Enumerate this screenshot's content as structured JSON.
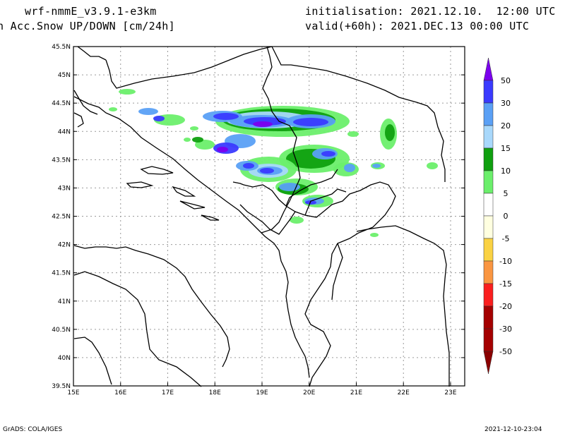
{
  "header": {
    "model": "wrf-nmmE_v3.9.1-e3km",
    "field": "h Acc.Snow UP/DOWN [cm/24h]",
    "init": "initialisation: 2021.12.10.  12:00 UTC",
    "valid": "valid(+60h): 2021.DEC.13 00:00 UTC"
  },
  "map": {
    "lat_labels": [
      "45.5N",
      "45N",
      "44.5N",
      "44N",
      "43.5N",
      "43N",
      "42.5N",
      "42N",
      "41.5N",
      "41N",
      "40.5N",
      "40N",
      "39.5N"
    ],
    "lon_labels": [
      "15E",
      "16E",
      "17E",
      "18E",
      "19E",
      "20E",
      "21E",
      "22E",
      "23E"
    ],
    "lat_range": [
      39.5,
      45.5
    ],
    "lon_range": [
      15,
      23.3
    ],
    "grid": "dotted"
  },
  "legend": {
    "levels": [
      "50",
      "30",
      "20",
      "15",
      "10",
      "5",
      "0",
      "-5",
      "-10",
      "-15",
      "-20",
      "-30",
      "-50"
    ],
    "colors": [
      "#7b00ee",
      "#3a3aff",
      "#5aa0f5",
      "#a8d8fb",
      "#0fa00f",
      "#6bef6b",
      "#ffffff",
      "#ffffe0",
      "#fad243",
      "#fa9641",
      "#fa1e1e",
      "#a50000"
    ]
  },
  "footer": {
    "left": "GrADS: COLA/IGES",
    "right": "2021-12-10-23:04"
  }
}
